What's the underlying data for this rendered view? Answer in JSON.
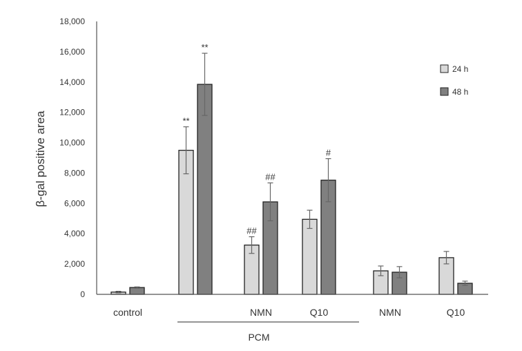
{
  "chart_data": {
    "type": "bar",
    "title": "",
    "xlabel": "",
    "ylabel": "β-gal positive area",
    "ylim": [
      0,
      18000
    ],
    "yticks": [
      "0",
      "2,000",
      "4,000",
      "6,000",
      "8,000",
      "10,000",
      "12,000",
      "14,000",
      "16,000",
      "18,000"
    ],
    "grid": false,
    "legend_position": "top-right",
    "categories": [
      "control",
      "",
      "NMN",
      "Q10",
      "NMN",
      "Q10"
    ],
    "group_label": {
      "text": "PCM",
      "spans": [
        1,
        3
      ]
    },
    "series": [
      {
        "name": "24 h",
        "color": "#d9d9d9",
        "values": [
          150,
          9500,
          3250,
          4950,
          1550,
          2420
        ],
        "errors": [
          50,
          1550,
          550,
          600,
          320,
          410
        ],
        "annotations": [
          "",
          "**",
          "##",
          "",
          "",
          ""
        ]
      },
      {
        "name": "48 h",
        "color": "#808080",
        "values": [
          450,
          13850,
          6100,
          7530,
          1460,
          730
        ],
        "errors": [
          40,
          2050,
          1250,
          1420,
          370,
          140
        ],
        "annotations": [
          "",
          "**",
          "##",
          "#",
          "",
          ""
        ]
      }
    ]
  }
}
